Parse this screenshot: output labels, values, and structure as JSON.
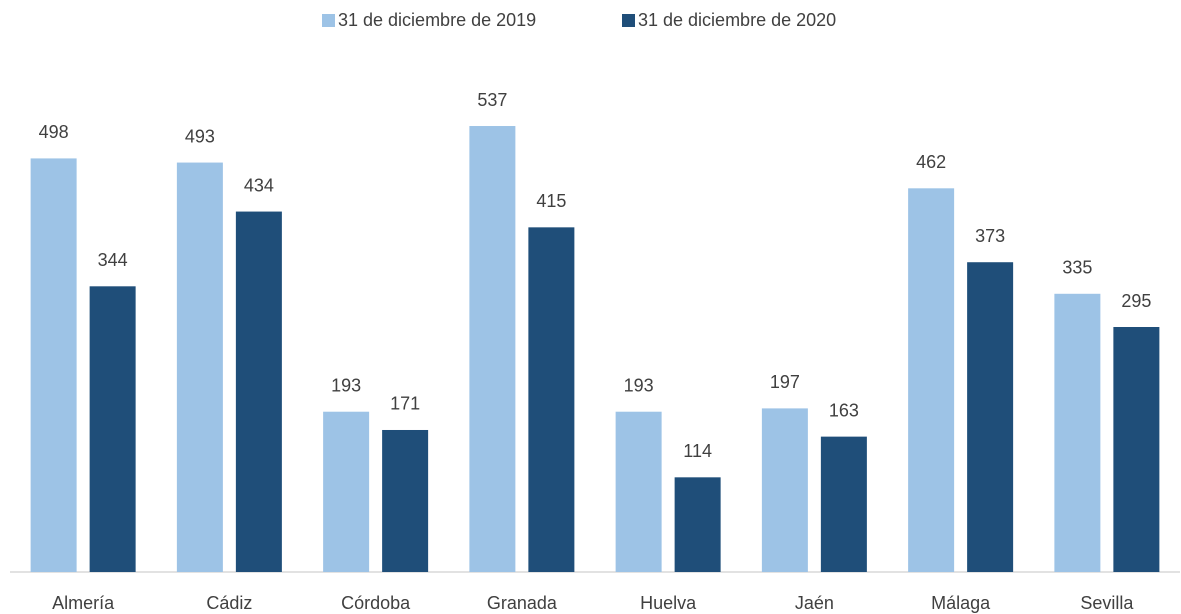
{
  "chart_data": {
    "type": "bar",
    "categories": [
      "Almería",
      "Cádiz",
      "Córdoba",
      "Granada",
      "Huelva",
      "Jaén",
      "Málaga",
      "Sevilla"
    ],
    "series": [
      {
        "name": "31 de diciembre de 2019",
        "color": "#9dc3e6",
        "values": [
          498,
          493,
          193,
          537,
          193,
          197,
          462,
          335
        ]
      },
      {
        "name": "31 de diciembre de 2020",
        "color": "#1f4e79",
        "values": [
          344,
          434,
          171,
          415,
          114,
          163,
          373,
          295
        ]
      }
    ],
    "ylim": [
      0,
      600
    ],
    "legend": "top"
  }
}
